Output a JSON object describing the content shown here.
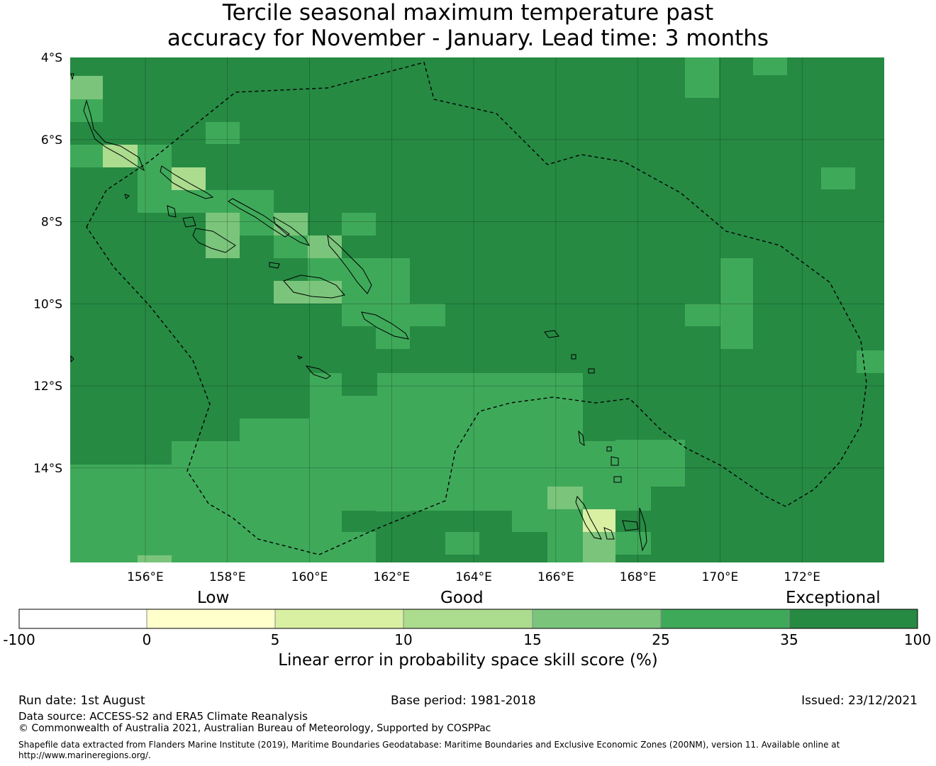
{
  "title": {
    "line1": "Tercile seasonal maximum temperature past",
    "line2": "accuracy for November - January. Lead time: 3 months"
  },
  "colors": {
    "exceptional_dark": "#268a43",
    "c25_35": "#3fa95a",
    "c15_25": "#7ac57b",
    "c10_15": "#acdc8e",
    "c5_10": "#d9f0a3",
    "c0_5": "#ffffcc",
    "neg": "#ffffff"
  },
  "map": {
    "lon_labels": [
      "156°E",
      "158°E",
      "160°E",
      "162°E",
      "164°E",
      "166°E",
      "168°E",
      "170°E",
      "172°E"
    ],
    "lon_values": [
      156,
      158,
      160,
      162,
      164,
      166,
      168,
      170,
      172
    ],
    "lat_labels": [
      "4°S",
      "6°S",
      "8°S",
      "10°S",
      "12°S",
      "14°S"
    ],
    "lat_values": [
      -4,
      -6,
      -8,
      -10,
      -12,
      -14
    ],
    "extent": {
      "lon_min": 154.17,
      "lon_max": 174.0,
      "lat_max": -4.0,
      "lat_min": -16.3
    },
    "cell_size_deg": 0.833
  },
  "colorbar": {
    "category_labels": {
      "low": "Low",
      "good": "Good",
      "exceptional": "Exceptional"
    },
    "ticks": [
      "-100",
      "0",
      "5",
      "10",
      "15",
      "25",
      "35",
      "100"
    ],
    "title": "Linear error in probability space skill score (%)"
  },
  "footer": {
    "run_date": "Run date: 1st August",
    "base_period": "Base period: 1981-2018",
    "issued": "Issued: 23/12/2021",
    "data_source": "Data source: ACCESS-S2 and ERA5 Climate Reanalysis",
    "copyright": "© Commonwealth of Australia 2021, Australian Bureau of Meteorology, Supported by COSPPac",
    "shapefile_line1": "Shapefile data extracted from Flanders Marine Institute (2019), Maritime Boundaries Geodatabase: Maritime Boundaries and Exclusive Economic Zones (200NM), version 11. Available online at",
    "shapefile_line2": "http://www.marineregions.org/."
  }
}
